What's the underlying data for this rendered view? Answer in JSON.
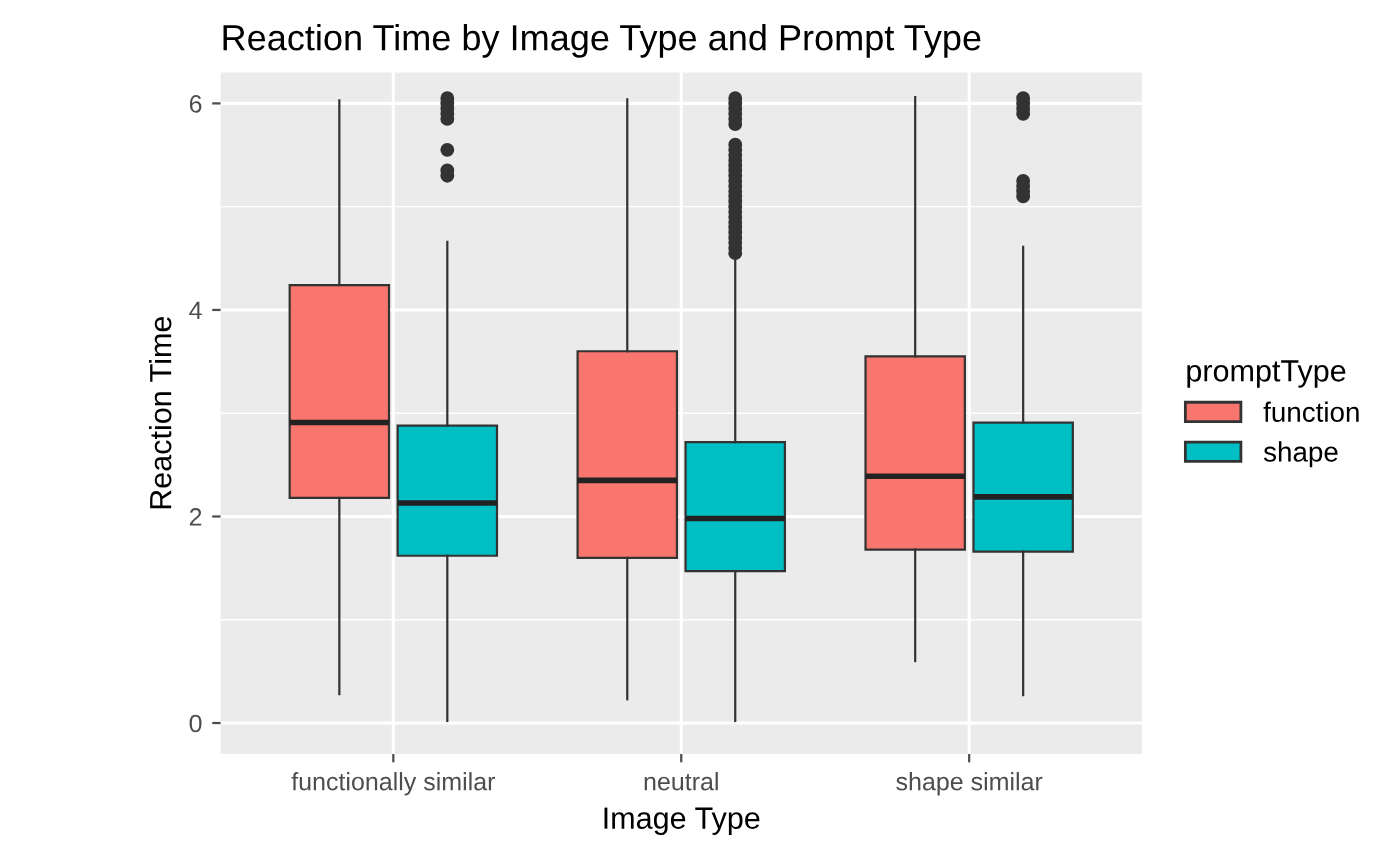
{
  "chart_data": {
    "type": "box",
    "title": "Reaction Time by Image Type and Prompt Type",
    "xlabel": "Image Type",
    "ylabel": "Reaction Time",
    "legend_title": "promptType",
    "categories": [
      "functionally similar",
      "neutral",
      "shape similar"
    ],
    "ylim": [
      -0.3,
      6.3
    ],
    "yticks": [
      0,
      2,
      4,
      6
    ],
    "grid": true,
    "legend": "right",
    "series": [
      {
        "name": "function",
        "color": "#f8766d",
        "boxes": [
          {
            "low": 0.28,
            "q1": 2.18,
            "median": 2.91,
            "q3": 4.24,
            "high": 6.03
          },
          {
            "low": 0.23,
            "q1": 1.6,
            "median": 2.35,
            "q3": 3.6,
            "high": 6.04
          },
          {
            "low": 0.6,
            "q1": 1.68,
            "median": 2.39,
            "q3": 3.55,
            "high": 6.06
          }
        ]
      },
      {
        "name": "shape",
        "color": "#00bfc4",
        "boxes": [
          {
            "low": 0.02,
            "q1": 1.62,
            "median": 2.13,
            "q3": 2.88,
            "high": 4.66,
            "outliers": [
              5.3,
              5.35,
              5.55,
              5.85,
              5.9,
              5.95,
              6.0,
              6.05
            ]
          },
          {
            "low": 0.02,
            "q1": 1.47,
            "median": 1.98,
            "q3": 2.72,
            "high": 4.5,
            "outliers": [
              4.55,
              4.6,
              4.65,
              4.7,
              4.75,
              4.8,
              4.85,
              4.9,
              4.95,
              5.0,
              5.05,
              5.1,
              5.15,
              5.2,
              5.25,
              5.3,
              5.35,
              5.4,
              5.45,
              5.5,
              5.55,
              5.6,
              5.8,
              5.85,
              5.9,
              5.95,
              6.0,
              6.05
            ]
          },
          {
            "low": 0.27,
            "q1": 1.66,
            "median": 2.19,
            "q3": 2.91,
            "high": 4.61,
            "outliers": [
              5.1,
              5.15,
              5.2,
              5.25,
              5.9,
              5.95,
              6.0,
              6.05
            ]
          }
        ]
      }
    ]
  }
}
